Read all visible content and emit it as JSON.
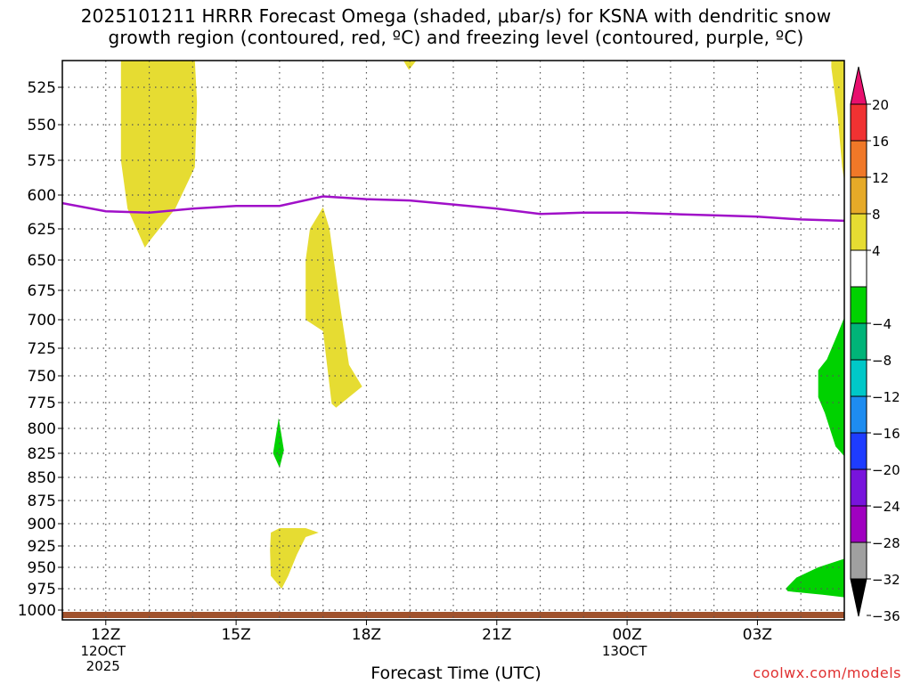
{
  "title": {
    "line1": "2025101211 HRRR Forecast Omega (shaded, μbar/s) for KSNA with dendritic snow",
    "line2": "growth region (contoured, red, ºC) and freezing level (contoured, purple, ºC)"
  },
  "watermark": "coolwx.com/models",
  "colors": {
    "freezing_level": "#a010c8",
    "ground": "#a0522d",
    "positive_shade": "#e6dc32",
    "negative_shade": "#00d200"
  },
  "chart_data": {
    "type": "heatmap",
    "title": "2025101211 HRRR Forecast Omega (shaded, μbar/s) for KSNA with dendritic snow growth region (contoured, red, ºC) and freezing level (contoured, purple, ºC)",
    "xlabel": "Forecast Time (UTC)",
    "ylabel": "",
    "x_range_hours": [
      11,
      29
    ],
    "y_range_mb": [
      505,
      1010
    ],
    "y_ticks": [
      525,
      550,
      575,
      600,
      625,
      650,
      675,
      700,
      725,
      750,
      775,
      800,
      825,
      850,
      875,
      900,
      925,
      950,
      975,
      1000
    ],
    "x_ticks": [
      {
        "hour": 12,
        "label": "12Z",
        "date": "12OCT",
        "year": "2025"
      },
      {
        "hour": 15,
        "label": "15Z",
        "date": "",
        "year": ""
      },
      {
        "hour": 18,
        "label": "18Z",
        "date": "",
        "year": ""
      },
      {
        "hour": 21,
        "label": "21Z",
        "date": "",
        "year": ""
      },
      {
        "hour": 24,
        "label": "00Z",
        "date": "13OCT",
        "year": ""
      },
      {
        "hour": 27,
        "label": "03Z",
        "date": "",
        "year": ""
      }
    ],
    "grid": true,
    "legend": "right",
    "colorbar": {
      "labels": [
        "20",
        "16",
        "12",
        "8",
        "4",
        "-4",
        "-8",
        "-12",
        "-16",
        "-20",
        "-24",
        "-28",
        "-32",
        "-36"
      ],
      "bins": [
        {
          "from": 20,
          "to": 20,
          "color": "#e8106e",
          "kind": "arrow-up"
        },
        {
          "from": 16,
          "to": 20,
          "color": "#f03232"
        },
        {
          "from": 12,
          "to": 16,
          "color": "#f07828"
        },
        {
          "from": 8,
          "to": 12,
          "color": "#e6aa28"
        },
        {
          "from": 4,
          "to": 8,
          "color": "#e6dc32"
        },
        {
          "from": -4,
          "to": 4,
          "color": "#ffffff"
        },
        {
          "from": -8,
          "to": -4,
          "color": "#00d200"
        },
        {
          "from": -12,
          "to": -8,
          "color": "#00b478"
        },
        {
          "from": -16,
          "to": -12,
          "color": "#00c8c8"
        },
        {
          "from": -20,
          "to": -16,
          "color": "#1e8cf0"
        },
        {
          "from": -24,
          "to": -20,
          "color": "#1e3cff"
        },
        {
          "from": -28,
          "to": -24,
          "color": "#7814dc"
        },
        {
          "from": -32,
          "to": -28,
          "color": "#a000c0"
        },
        {
          "from": -36,
          "to": -32,
          "color": "#a0a0a0"
        },
        {
          "from": -36,
          "to": -36,
          "color": "#000000",
          "kind": "arrow-down"
        }
      ]
    },
    "freezing_level_line": {
      "series_name": "",
      "color": "#a010c8",
      "points": [
        [
          11.0,
          606
        ],
        [
          12.0,
          612
        ],
        [
          13.0,
          613
        ],
        [
          14.0,
          610
        ],
        [
          15.0,
          608
        ],
        [
          16.0,
          608
        ],
        [
          17.0,
          601
        ],
        [
          18.0,
          603
        ],
        [
          19.0,
          604
        ],
        [
          20.0,
          607
        ],
        [
          21.0,
          610
        ],
        [
          22.0,
          614
        ],
        [
          23.0,
          613
        ],
        [
          24.0,
          613
        ],
        [
          25.0,
          614
        ],
        [
          26.0,
          615
        ],
        [
          27.0,
          616
        ],
        [
          28.0,
          618
        ],
        [
          29.0,
          619
        ]
      ]
    },
    "shaded_regions": [
      {
        "range": "4 to 8",
        "color": "#e6dc32",
        "polygon": [
          [
            12.35,
            505
          ],
          [
            14.05,
            505
          ],
          [
            14.1,
            535
          ],
          [
            14.05,
            580
          ],
          [
            13.6,
            610
          ],
          [
            13.0,
            635
          ],
          [
            12.9,
            640
          ],
          [
            12.5,
            610
          ],
          [
            12.35,
            575
          ]
        ]
      },
      {
        "range": "4 to 8",
        "color": "#e6dc32",
        "polygon": [
          [
            18.85,
            505
          ],
          [
            19.15,
            505
          ],
          [
            18.98,
            512
          ]
        ]
      },
      {
        "range": "4 to 8",
        "color": "#e6dc32",
        "polygon": [
          [
            17.0,
            609
          ],
          [
            17.15,
            625
          ],
          [
            17.4,
            690
          ],
          [
            17.6,
            740
          ],
          [
            17.9,
            760
          ],
          [
            17.3,
            780
          ],
          [
            17.2,
            776
          ],
          [
            17.0,
            710
          ],
          [
            16.6,
            700
          ],
          [
            16.6,
            650
          ],
          [
            16.7,
            625
          ]
        ]
      },
      {
        "range": "4 to 8",
        "color": "#e6dc32",
        "polygon": [
          [
            16.0,
            905
          ],
          [
            16.6,
            905
          ],
          [
            16.9,
            910
          ],
          [
            16.6,
            915
          ],
          [
            16.4,
            935
          ],
          [
            16.2,
            960
          ],
          [
            16.05,
            975
          ],
          [
            15.8,
            960
          ],
          [
            15.78,
            930
          ],
          [
            15.8,
            910
          ]
        ]
      },
      {
        "range": "4 to 8",
        "color": "#e6dc32",
        "polygon": [
          [
            28.7,
            505
          ],
          [
            29.0,
            505
          ],
          [
            29.0,
            590
          ],
          [
            28.95,
            580
          ],
          [
            28.85,
            545
          ],
          [
            28.7,
            510
          ]
        ]
      },
      {
        "range": "-8 to -4",
        "color": "#00d200",
        "polygon": [
          [
            15.98,
            790
          ],
          [
            16.1,
            822
          ],
          [
            16.0,
            840
          ],
          [
            15.85,
            825
          ]
        ]
      },
      {
        "range": "-8 to -4",
        "color": "#00d200",
        "polygon": [
          [
            29.0,
            698
          ],
          [
            29.0,
            828
          ],
          [
            28.8,
            818
          ],
          [
            28.55,
            785
          ],
          [
            28.4,
            770
          ],
          [
            28.4,
            745
          ],
          [
            28.6,
            735
          ],
          [
            28.85,
            712
          ]
        ]
      },
      {
        "range": "-8 to -4",
        "color": "#00d200",
        "polygon": [
          [
            29.0,
            940
          ],
          [
            29.0,
            985
          ],
          [
            28.5,
            982
          ],
          [
            27.7,
            978
          ],
          [
            27.65,
            975
          ],
          [
            27.9,
            962
          ],
          [
            28.4,
            950
          ]
        ]
      }
    ]
  }
}
